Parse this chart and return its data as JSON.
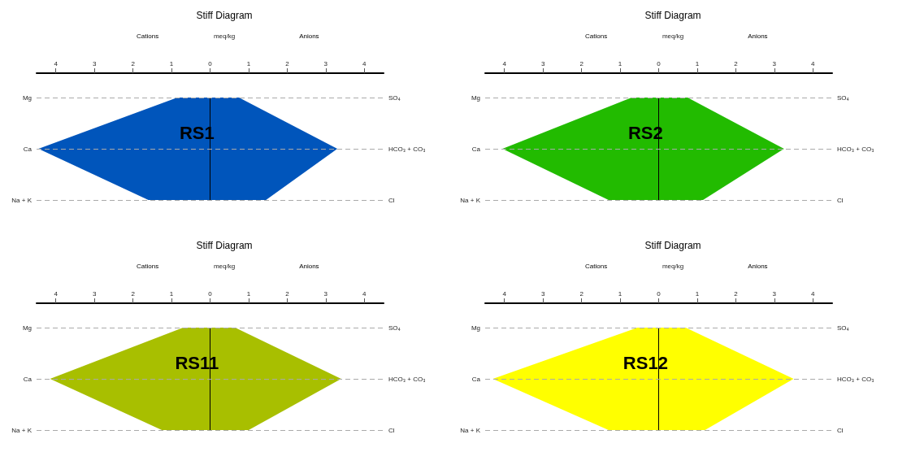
{
  "chart_data": [
    {
      "type": "area",
      "orientation": "horizontal",
      "title": "Stiff Diagram",
      "xlabel": "meq/kg",
      "annotations": [
        "Cations",
        "Anions",
        "RS1"
      ],
      "categories": [
        "Mg",
        "Ca",
        "Na + K"
      ],
      "y2_categories": [
        "SO₄",
        "HCO₃ + CO₃",
        "Cl"
      ],
      "series": [
        {
          "color": "#0055bb",
          "values": [
            -0.85,
            -4.45,
            -1.6
          ]
        },
        {
          "color": "#0055bb",
          "values": [
            0.75,
            3.3,
            1.45
          ]
        }
      ],
      "xlim": [
        -4.5,
        4.5
      ],
      "xticks": [
        {
          "value": -4,
          "label": "4"
        },
        {
          "value": -3,
          "label": "3"
        },
        {
          "value": -2,
          "label": "2"
        },
        {
          "value": -1,
          "label": "1"
        },
        0,
        1,
        2,
        3,
        4
      ],
      "ref_lines": [
        {
          "axis": "x",
          "value": 0
        },
        {
          "axis": "y",
          "value": "Mg",
          "color": "#aaaaaa",
          "line_style": "dashed"
        },
        {
          "axis": "y",
          "value": "Ca",
          "color": "#aaaaaa",
          "line_style": "dashed"
        },
        {
          "axis": "y",
          "value": "Na + K",
          "color": "#aaaaaa",
          "line_style": "dashed"
        }
      ]
    },
    {
      "type": "area",
      "orientation": "horizontal",
      "title": "Stiff Diagram",
      "xlabel": "meq/kg",
      "annotations": [
        "Cations",
        "Anions",
        "RS2"
      ],
      "categories": [
        "Mg",
        "Ca",
        "Na + K"
      ],
      "y2_categories": [
        "SO₄",
        "HCO₃ + CO₃",
        "Cl"
      ],
      "series": [
        {
          "color": "#22bb00",
          "values": [
            -0.7,
            -4.05,
            -1.3
          ]
        },
        {
          "color": "#22bb00",
          "values": [
            0.75,
            3.25,
            1.15
          ]
        }
      ],
      "xlim": [
        -4.5,
        4.5
      ],
      "xticks": [
        {
          "value": -4,
          "label": "4"
        },
        {
          "value": -3,
          "label": "3"
        },
        {
          "value": -2,
          "label": "2"
        },
        {
          "value": -1,
          "label": "1"
        },
        0,
        1,
        2,
        3,
        4
      ],
      "ref_lines": [
        {
          "axis": "x",
          "value": 0
        },
        {
          "axis": "y",
          "value": "Mg",
          "color": "#aaaaaa",
          "line_style": "dashed"
        },
        {
          "axis": "y",
          "value": "Ca",
          "color": "#aaaaaa",
          "line_style": "dashed"
        },
        {
          "axis": "y",
          "value": "Na + K",
          "color": "#aaaaaa",
          "line_style": "dashed"
        }
      ]
    },
    {
      "type": "area",
      "orientation": "horizontal",
      "title": "Stiff Diagram",
      "xlabel": "meq/kg",
      "annotations": [
        "Cations",
        "Anions",
        "RS11"
      ],
      "categories": [
        "Mg",
        "Ca",
        "Na + K"
      ],
      "y2_categories": [
        "SO₄",
        "HCO₃ + CO₃",
        "Cl"
      ],
      "series": [
        {
          "color": "#a8bf00",
          "values": [
            -0.7,
            -4.15,
            -1.25
          ]
        },
        {
          "color": "#a8bf00",
          "values": [
            0.65,
            3.4,
            1.0
          ]
        }
      ],
      "xlim": [
        -4.5,
        4.5
      ],
      "xticks": [
        {
          "value": -4,
          "label": "4"
        },
        {
          "value": -3,
          "label": "3"
        },
        {
          "value": -2,
          "label": "2"
        },
        {
          "value": -1,
          "label": "1"
        },
        0,
        1,
        2,
        3,
        4
      ],
      "ref_lines": [
        {
          "axis": "x",
          "value": 0
        },
        {
          "axis": "y",
          "value": "Mg",
          "color": "#aaaaaa",
          "line_style": "dashed"
        },
        {
          "axis": "y",
          "value": "Ca",
          "color": "#aaaaaa",
          "line_style": "dashed"
        },
        {
          "axis": "y",
          "value": "Na + K",
          "color": "#aaaaaa",
          "line_style": "dashed"
        }
      ]
    },
    {
      "type": "area",
      "orientation": "horizontal",
      "title": "Stiff Diagram",
      "xlabel": "meq/kg",
      "annotations": [
        "Cations",
        "Anions",
        "RS12"
      ],
      "categories": [
        "Mg",
        "Ca",
        "Na + K"
      ],
      "y2_categories": [
        "SO₄",
        "HCO₃ + CO₃",
        "Cl"
      ],
      "series": [
        {
          "color": "#ffff00",
          "values": [
            -0.55,
            -4.3,
            -1.3
          ]
        },
        {
          "color": "#ffff00",
          "values": [
            0.7,
            3.5,
            1.2
          ]
        }
      ],
      "xlim": [
        -4.5,
        4.5
      ],
      "xticks": [
        {
          "value": -4,
          "label": "4"
        },
        {
          "value": -3,
          "label": "3"
        },
        {
          "value": -2,
          "label": "2"
        },
        {
          "value": -1,
          "label": "1"
        },
        0,
        1,
        2,
        3,
        4
      ],
      "ref_lines": [
        {
          "axis": "x",
          "value": 0
        },
        {
          "axis": "y",
          "value": "Mg",
          "color": "#aaaaaa",
          "line_style": "dashed"
        },
        {
          "axis": "y",
          "value": "Ca",
          "color": "#aaaaaa",
          "line_style": "dashed"
        },
        {
          "axis": "y",
          "value": "Na + K",
          "color": "#aaaaaa",
          "line_style": "dashed"
        }
      ]
    }
  ]
}
